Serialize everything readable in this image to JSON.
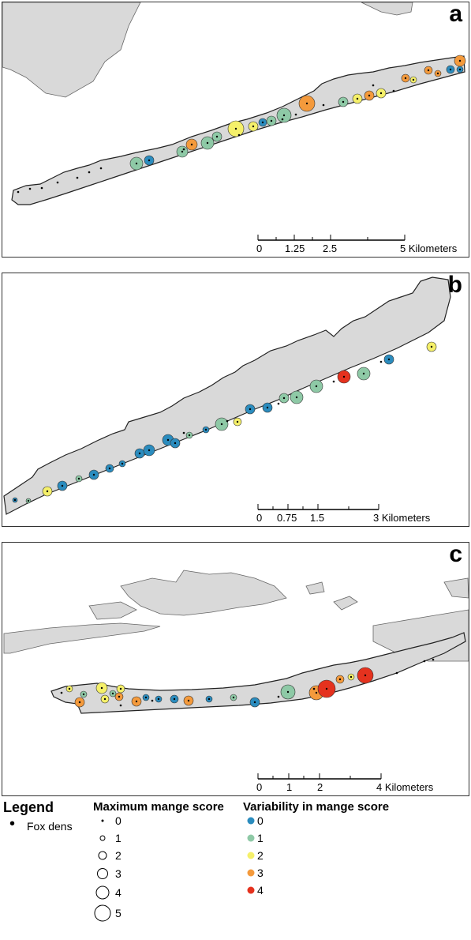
{
  "colors": {
    "land": "#d9d9d9",
    "outline": "#333333",
    "var0": "#2b8cbe",
    "var1": "#8ec9a6",
    "var2": "#f5f06a",
    "var3": "#f49a3c",
    "var4": "#e5321e"
  },
  "panels": [
    {
      "label": "a",
      "scale_ticks": [
        "0",
        "1.25",
        "2.5",
        "5 Kilometers"
      ]
    },
    {
      "label": "b",
      "scale_ticks": [
        "0",
        "0.75",
        "1.5",
        "3 Kilometers"
      ]
    },
    {
      "label": "c",
      "scale_ticks": [
        "0",
        "1",
        "2",
        "4 Kilometers"
      ]
    }
  ],
  "legend": {
    "title": "Legend",
    "fox_dens_label": "Fox dens",
    "max_mange_title": "Maximum mange score",
    "max_mange_levels": [
      "0",
      "1",
      "2",
      "3",
      "4",
      "5"
    ],
    "variability_title": "Variability in mange score",
    "variability_levels": [
      "0",
      "1",
      "2",
      "3",
      "4"
    ]
  }
}
